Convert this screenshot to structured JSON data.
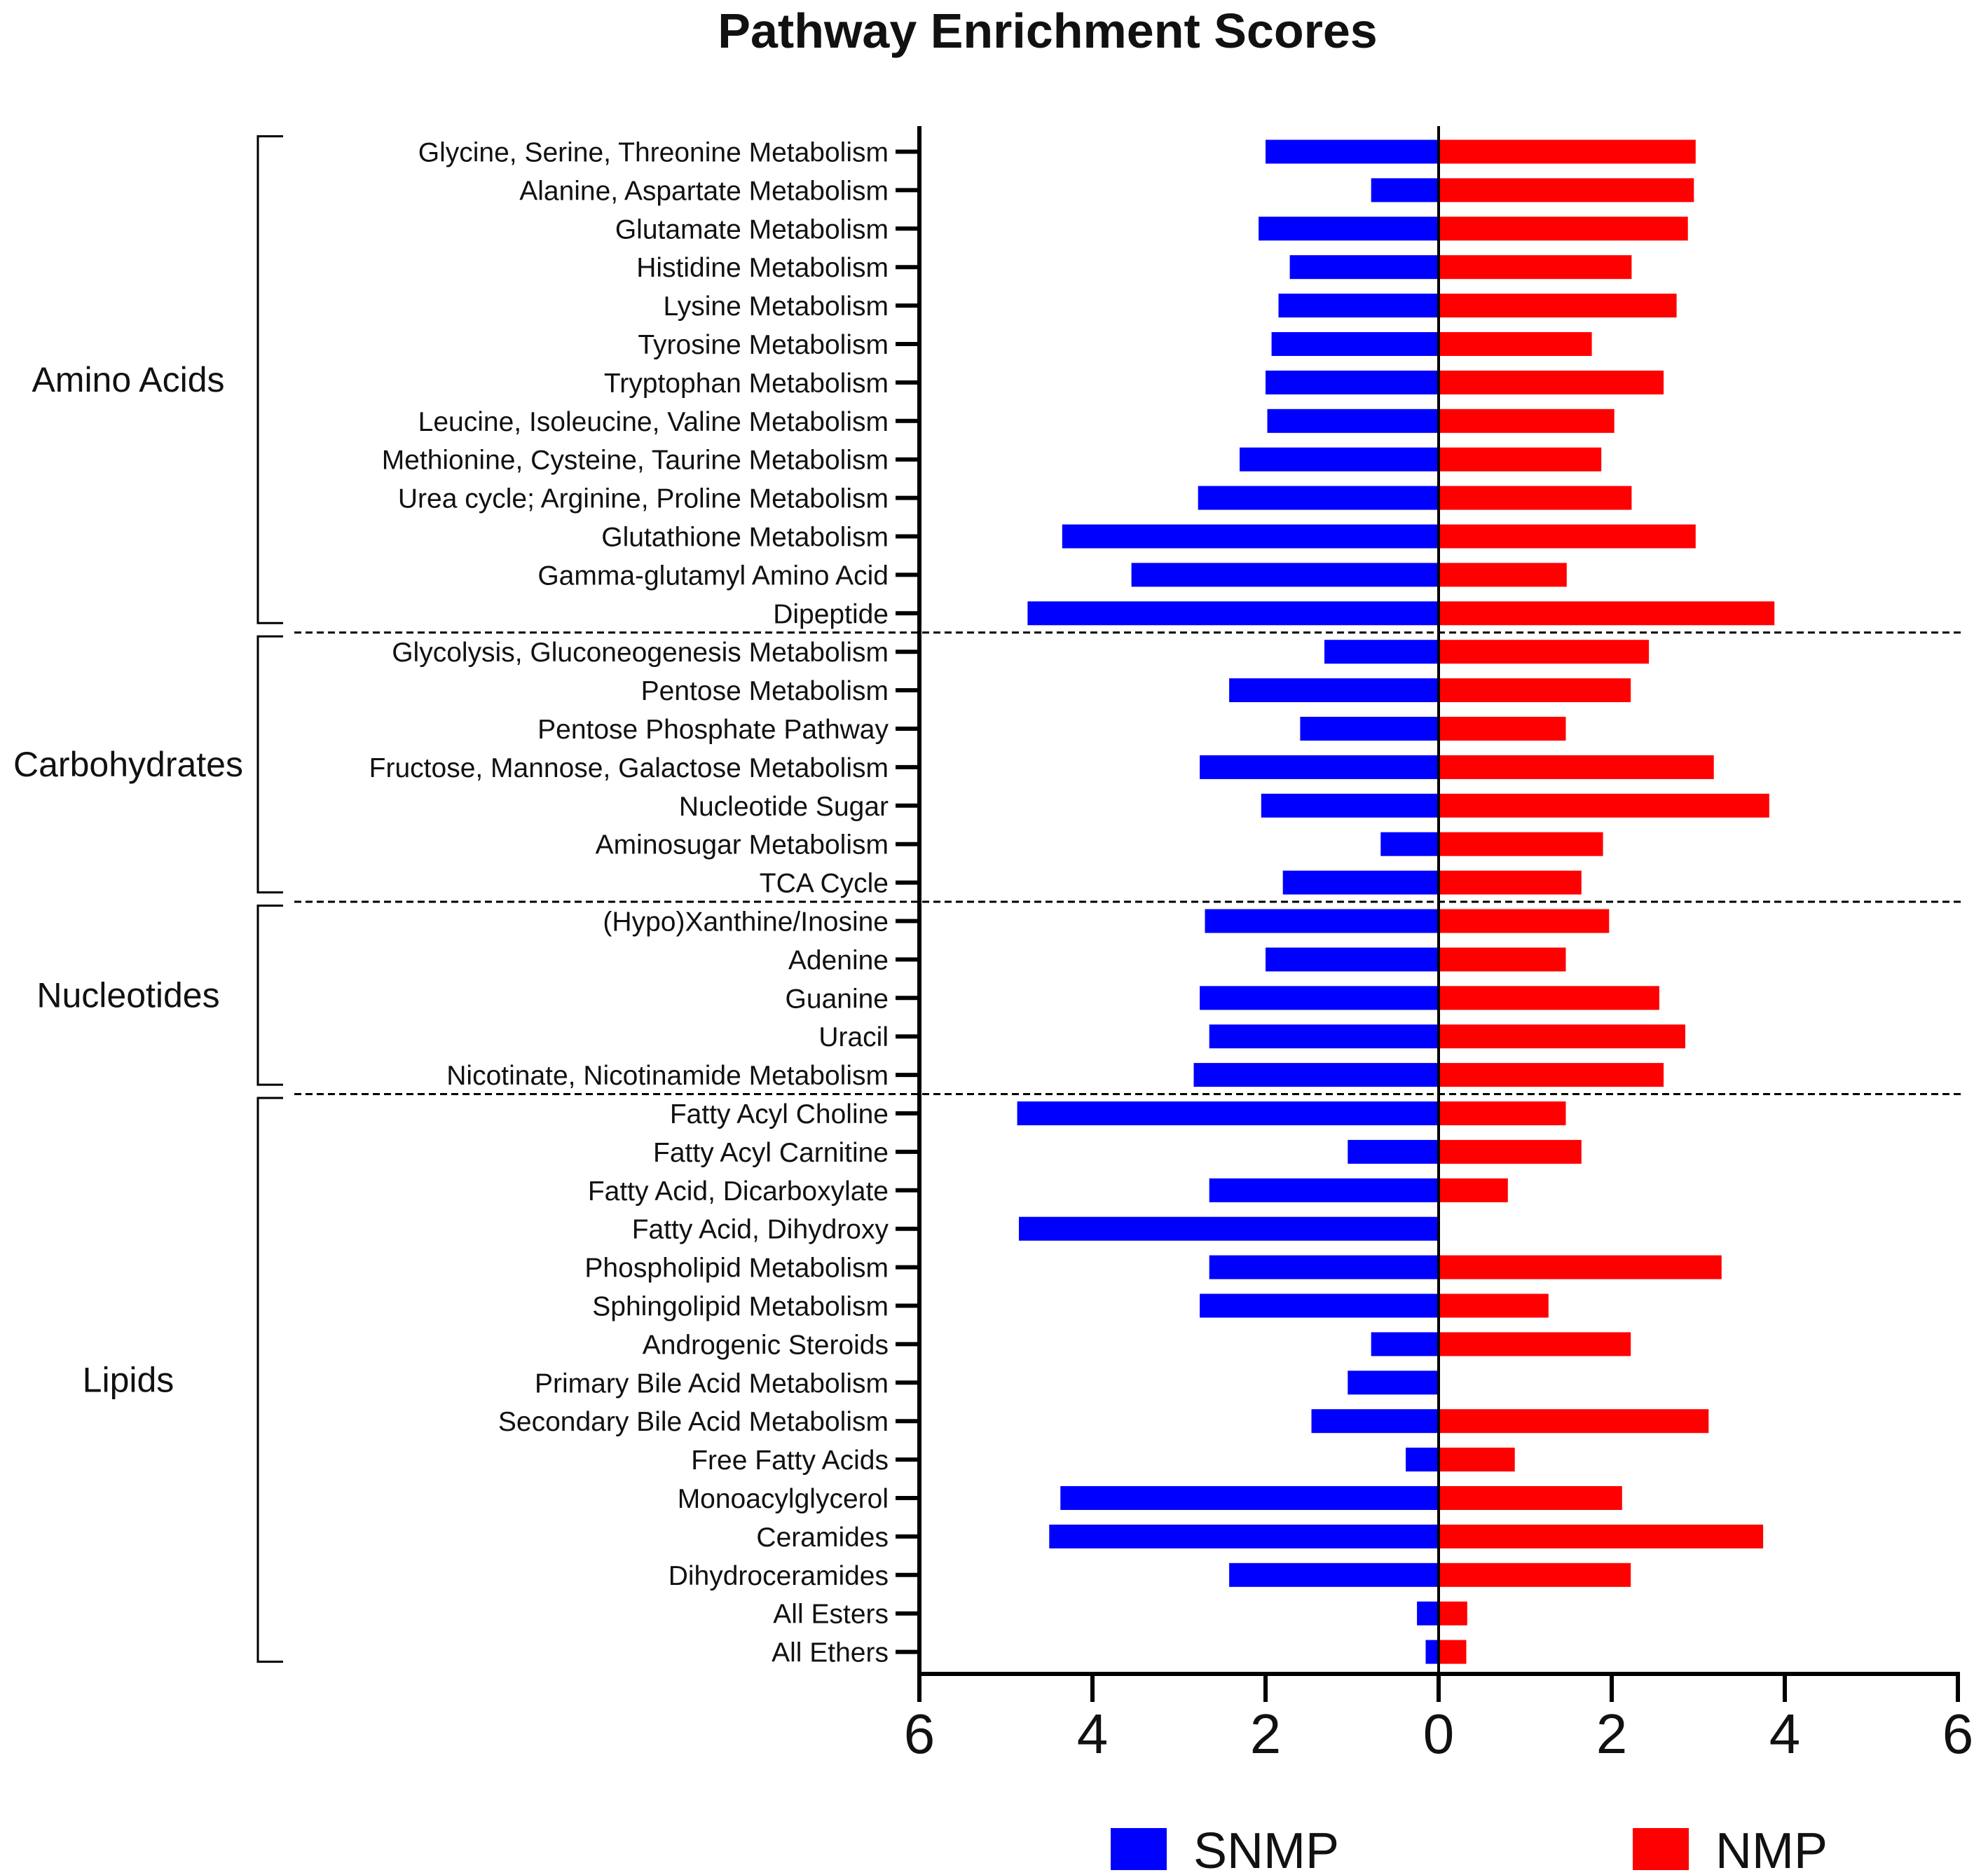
{
  "chart_data": {
    "type": "bar",
    "orientation": "horizontal-diverging",
    "title": "Pathway Enrichment Scores",
    "xlabel": "",
    "ylabel": "",
    "xlim": [
      -6,
      6
    ],
    "x_tick_values": [
      -6,
      -4,
      -2,
      0,
      2,
      4,
      6
    ],
    "x_tick_labels": [
      "6",
      "4",
      "2",
      "0",
      "2",
      "4",
      "6"
    ],
    "legend_position": "bottom",
    "grid": false,
    "groups": [
      {
        "name": "Amino Acids",
        "start": 0,
        "end": 12
      },
      {
        "name": "Carbohydrates",
        "start": 13,
        "end": 19
      },
      {
        "name": "Nucleotides",
        "start": 20,
        "end": 24
      },
      {
        "name": "Lipids",
        "start": 25,
        "end": 39
      }
    ],
    "categories": [
      "Glycine, Serine, Threonine Metabolism",
      "Alanine, Aspartate Metabolism",
      "Glutamate Metabolism",
      "Histidine Metabolism",
      "Lysine Metabolism",
      "Tyrosine Metabolism",
      "Tryptophan Metabolism",
      "Leucine, Isoleucine, Valine Metabolism",
      "Methionine, Cysteine, Taurine Metabolism",
      "Urea cycle; Arginine, Proline Metabolism",
      "Glutathione Metabolism",
      "Gamma-glutamyl Amino Acid",
      "Dipeptide",
      "Glycolysis, Gluconeogenesis Metabolism",
      "Pentose Metabolism",
      "Pentose Phosphate Pathway",
      "Fructose, Mannose, Galactose Metabolism",
      "Nucleotide Sugar",
      "Aminosugar Metabolism",
      "TCA Cycle",
      "(Hypo)Xanthine/Inosine",
      "Adenine",
      "Guanine",
      "Uracil",
      "Nicotinate, Nicotinamide Metabolism",
      "Fatty Acyl Choline",
      "Fatty Acyl Carnitine",
      "Fatty Acid, Dicarboxylate",
      "Fatty Acid, Dihydroxy",
      "Phospholipid Metabolism",
      "Sphingolipid Metabolism",
      "Androgenic Steroids",
      "Primary Bile Acid Metabolism",
      "Secondary Bile Acid Metabolism",
      "Free Fatty Acids",
      "Monoacylglycerol",
      "Ceramides",
      "Dihydroceramides",
      "All Esters",
      "All Ethers"
    ],
    "series": [
      {
        "name": "SNMP",
        "color": "#0000ff",
        "direction": "left",
        "values": [
          2.0,
          0.78,
          2.08,
          1.72,
          1.85,
          1.93,
          2.0,
          1.98,
          2.3,
          2.78,
          4.35,
          3.55,
          4.75,
          1.32,
          2.42,
          1.6,
          2.76,
          2.05,
          0.67,
          1.8,
          2.7,
          2.0,
          2.76,
          2.65,
          2.83,
          4.87,
          1.05,
          2.65,
          4.85,
          2.65,
          2.76,
          0.78,
          1.05,
          1.47,
          0.38,
          4.37,
          4.5,
          2.42,
          0.25,
          0.15
        ]
      },
      {
        "name": "NMP",
        "color": "#ff0000",
        "direction": "right",
        "values": [
          2.97,
          2.95,
          2.88,
          2.23,
          2.75,
          1.77,
          2.6,
          2.03,
          1.88,
          2.23,
          2.97,
          1.48,
          3.88,
          2.43,
          2.22,
          1.47,
          3.18,
          3.82,
          1.9,
          1.65,
          1.97,
          1.47,
          2.55,
          2.85,
          2.6,
          1.47,
          1.65,
          0.8,
          0.0,
          3.27,
          1.27,
          2.22,
          0.0,
          3.12,
          0.88,
          2.12,
          3.75,
          2.22,
          0.33,
          0.32
        ]
      }
    ]
  }
}
